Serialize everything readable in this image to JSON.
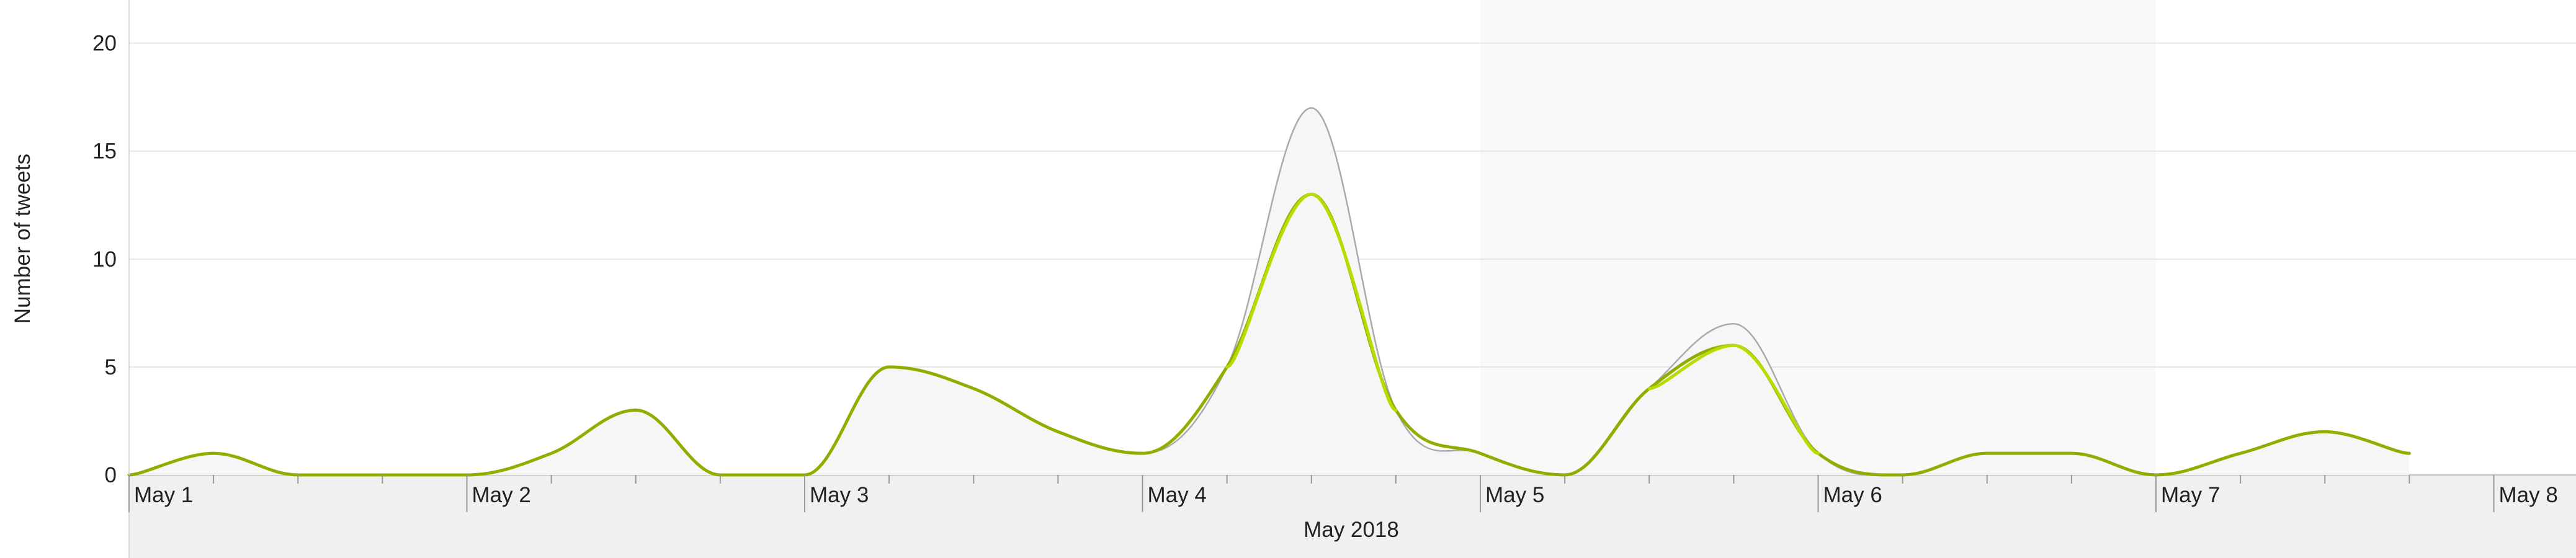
{
  "chart_data": {
    "type": "line",
    "title": "",
    "xlabel": "May 2018",
    "ylabel": "Number of tweets",
    "x_tick_labels": [
      "May 1",
      "May 2",
      "May 3",
      "May 4",
      "May 5",
      "May 6",
      "May 7",
      "May 8"
    ],
    "y_tick_labels": [
      "0",
      "5",
      "10",
      "15",
      "20"
    ],
    "ylim": [
      0,
      22
    ],
    "xlim": [
      "2018-05-01 00:00",
      "2018-05-08 03:00"
    ],
    "grid": "horizontal",
    "highlight_range": [
      "2018-05-05 00:00",
      "2018-05-07 00:00"
    ],
    "colors": {
      "total_line": "#aaaaaa",
      "primary_line": "#8db000",
      "primary_line_highlight": "#b8dc00",
      "area_fill": "#f6f6f6",
      "highlight_band": "#f9f9f9",
      "axis_band": "#f0f0f0"
    },
    "x": [
      "2018-05-01 00:00",
      "2018-05-01 06:00",
      "2018-05-01 12:00",
      "2018-05-01 18:00",
      "2018-05-02 00:00",
      "2018-05-02 06:00",
      "2018-05-02 12:00",
      "2018-05-02 18:00",
      "2018-05-03 00:00",
      "2018-05-03 06:00",
      "2018-05-03 12:00",
      "2018-05-03 18:00",
      "2018-05-04 00:00",
      "2018-05-04 06:00",
      "2018-05-04 12:00",
      "2018-05-04 18:00",
      "2018-05-05 00:00",
      "2018-05-05 06:00",
      "2018-05-05 12:00",
      "2018-05-05 18:00",
      "2018-05-06 00:00",
      "2018-05-06 06:00",
      "2018-05-06 12:00",
      "2018-05-06 18:00",
      "2018-05-07 00:00",
      "2018-05-07 06:00",
      "2018-05-07 12:00",
      "2018-05-07 18:00"
    ],
    "series": [
      {
        "values": [
          0,
          1,
          0,
          0,
          0,
          1,
          3,
          0,
          0,
          5,
          4,
          2,
          1,
          5,
          17,
          3,
          1,
          0,
          4,
          7,
          1,
          0,
          1,
          1,
          0,
          1,
          2,
          1
        ]
      },
      {
        "values": [
          0,
          1,
          0,
          0,
          0,
          1,
          3,
          0,
          0,
          5,
          4,
          2,
          1,
          5,
          13,
          3,
          1,
          0,
          4,
          6,
          1,
          0,
          1,
          1,
          0,
          1,
          2,
          1
        ]
      }
    ]
  }
}
